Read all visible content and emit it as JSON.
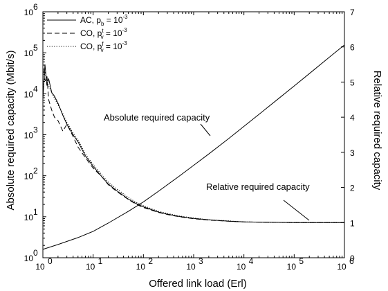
{
  "chart_data": {
    "type": "line",
    "xlabel": "Offered link load (Erl)",
    "ylabel_left": "Absolute required capacity (Mbit/s)",
    "ylabel_right": "Relative required capacity",
    "x_scale": "log",
    "xlim": [
      1,
      1000000
    ],
    "ylim_left": [
      1,
      1000000
    ],
    "y_left_scale": "log",
    "ylim_right": [
      0,
      7
    ],
    "y_right_scale": "linear",
    "x_ticks": [
      {
        "base": "10",
        "exp": "0"
      },
      {
        "base": "10",
        "exp": "1"
      },
      {
        "base": "10",
        "exp": "2"
      },
      {
        "base": "10",
        "exp": "3"
      },
      {
        "base": "10",
        "exp": "4"
      },
      {
        "base": "10",
        "exp": "5"
      },
      {
        "base": "10",
        "exp": "6"
      }
    ],
    "y_left_ticks": [
      {
        "base": "10",
        "exp": "0"
      },
      {
        "base": "10",
        "exp": "1"
      },
      {
        "base": "10",
        "exp": "2"
      },
      {
        "base": "10",
        "exp": "3"
      },
      {
        "base": "10",
        "exp": "4"
      },
      {
        "base": "10",
        "exp": "5"
      },
      {
        "base": "10",
        "exp": "6"
      }
    ],
    "y_right_ticks": [
      "0",
      "1",
      "2",
      "3",
      "4",
      "5",
      "6",
      "7"
    ],
    "legend": {
      "placement": "top-left",
      "entries": [
        {
          "style": "solid",
          "prefix": "AC, p",
          "sub": "b",
          "sup": "",
          "suffix": " = 10",
          "exp": "-3"
        },
        {
          "style": "dashed",
          "prefix": "CO, p",
          "sub": "v",
          "sup": "t",
          "suffix": " = 10",
          "exp": "-3"
        },
        {
          "style": "dotted",
          "prefix": "CO, p",
          "sub": "v",
          "sup": "f",
          "suffix": " = 10",
          "exp": "-3"
        }
      ]
    },
    "annotations": [
      {
        "text": "Absolute required capacity"
      },
      {
        "text": "Relative required capacity"
      }
    ],
    "series": [
      {
        "curve": "absolute required capacity",
        "axis": "left",
        "style": "solid",
        "x": [
          1,
          2,
          5,
          10,
          20,
          50,
          100,
          200,
          500,
          1000,
          2000,
          5000,
          10000,
          20000,
          50000,
          100000,
          200000,
          500000,
          1000000
        ],
        "y": [
          1.6,
          2.1,
          3.1,
          4.4,
          7,
          13.5,
          23,
          42,
          95,
          180,
          340,
          810,
          1600,
          3150,
          7800,
          15500,
          31000,
          78000,
          155000
        ]
      },
      {
        "curve": "relative required capacity (AC)",
        "axis": "right",
        "style": "solid",
        "x": [
          1,
          1.1,
          1.2,
          1.3,
          1.5,
          1.7,
          2,
          2.5,
          3,
          4,
          5,
          7,
          10,
          15,
          20,
          30,
          50,
          70,
          100,
          200,
          300,
          500,
          1000,
          2000,
          5000,
          10000,
          30000,
          100000,
          1000000
        ],
        "y": [
          4.5,
          5.5,
          4.9,
          5.1,
          4.7,
          4.6,
          4.4,
          4.05,
          3.8,
          3.5,
          3.3,
          2.9,
          2.6,
          2.3,
          2.1,
          1.9,
          1.67,
          1.55,
          1.45,
          1.3,
          1.24,
          1.18,
          1.12,
          1.08,
          1.04,
          1.02,
          1.01,
          1.0,
          1.0
        ]
      },
      {
        "curve": "relative required capacity (CO, t)",
        "axis": "right",
        "style": "dashed",
        "x": [
          1,
          1.1,
          1.2,
          1.3,
          1.5,
          1.7,
          2,
          2.5,
          3,
          4,
          5,
          7,
          10,
          15,
          20,
          30,
          50,
          70,
          100,
          200,
          300,
          500,
          1000,
          2000,
          5000,
          10000,
          30000,
          100000,
          1000000
        ],
        "y": [
          5.4,
          5.0,
          5.2,
          4.5,
          4.2,
          4.0,
          3.9,
          3.6,
          3.8,
          3.45,
          3.15,
          2.85,
          2.55,
          2.3,
          2.08,
          1.88,
          1.66,
          1.53,
          1.43,
          1.29,
          1.23,
          1.17,
          1.11,
          1.07,
          1.04,
          1.02,
          1.01,
          1.0,
          1.0
        ]
      },
      {
        "curve": "relative required capacity (CO, f)",
        "axis": "right",
        "style": "dotted",
        "x": [
          1,
          1.1,
          1.2,
          1.3,
          1.5,
          1.7,
          2,
          2.5,
          3,
          4,
          5,
          7,
          10,
          15,
          20,
          30,
          50,
          70,
          100,
          200,
          300,
          500,
          1000,
          2000,
          5000,
          10000,
          30000,
          100000,
          1000000
        ],
        "y": [
          4.8,
          5.3,
          5.0,
          4.9,
          4.7,
          4.55,
          4.35,
          4.1,
          3.85,
          3.55,
          3.35,
          2.95,
          2.65,
          2.35,
          2.15,
          1.95,
          1.72,
          1.58,
          1.48,
          1.32,
          1.26,
          1.19,
          1.13,
          1.08,
          1.05,
          1.02,
          1.01,
          1.0,
          1.0
        ]
      }
    ]
  }
}
